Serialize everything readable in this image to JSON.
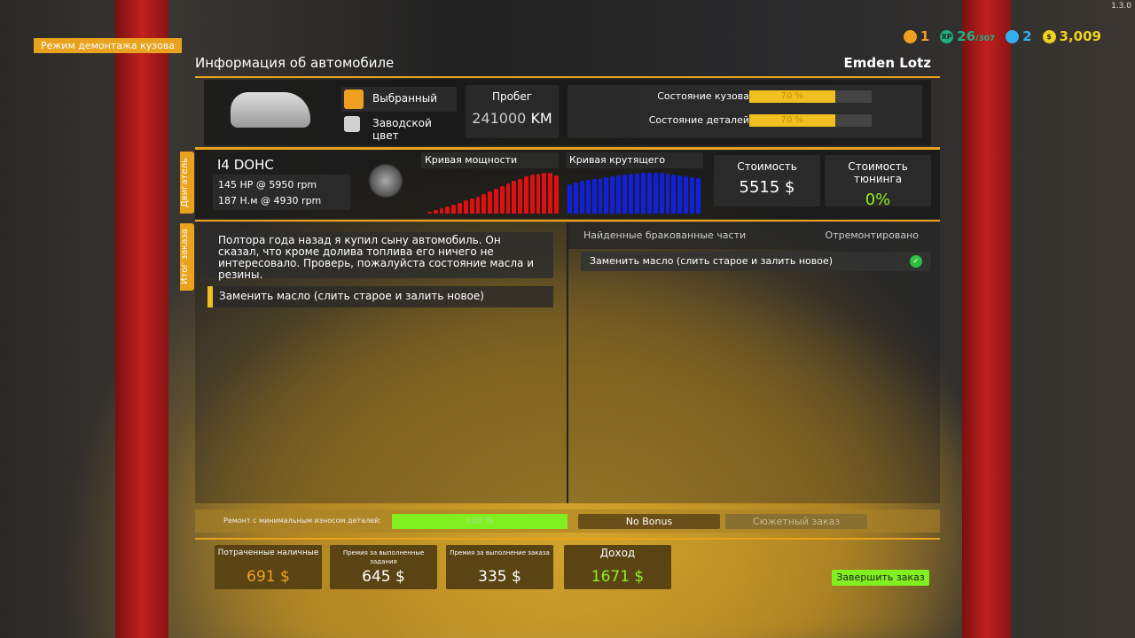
{
  "version": "1.3.0",
  "mode_label": "Режим демонтажа кузова",
  "hud": {
    "level": "1",
    "xp": "26",
    "xp_max": "/307",
    "calls": "2",
    "money": "3,009"
  },
  "header": {
    "title": "Информация об автомобиле",
    "owner": "Emden Lotz"
  },
  "car": {
    "selected_label": "Выбранный",
    "factory_label": "Заводской цвет",
    "selected_color": "#f0a020",
    "factory_color": "#d0d0d0",
    "mileage_label": "Пробег",
    "mileage": "241000",
    "mileage_unit": "KM",
    "body_label": "Состояние кузова",
    "body_value": "70 %",
    "body_pct": 70,
    "parts_label": "Состояние деталей",
    "parts_value": "70 %",
    "parts_pct": 70
  },
  "engine": {
    "tab": "Двигатель",
    "name": "I4 DOHC",
    "power": "145 HP @ 5950 rpm",
    "torque": "187 Н.м @ 4930 rpm",
    "power_curve_label": "Кривая мощности",
    "torque_curve_label": "Кривая крутящего",
    "power_curve": [
      5,
      9,
      13,
      17,
      21,
      26,
      31,
      36,
      41,
      47,
      53,
      59,
      65,
      72,
      78,
      84,
      89,
      93,
      96,
      98,
      97,
      92
    ],
    "torque_curve": [
      70,
      74,
      78,
      81,
      84,
      86,
      88,
      90,
      92,
      94,
      95,
      96,
      97,
      98,
      98,
      97,
      96,
      94,
      92,
      90,
      88,
      85
    ],
    "power_color": "#e01010",
    "torque_color": "#1020e0",
    "cost_label": "Стоимость",
    "cost": "5515 $",
    "tuning_label": "Стоимость тюнинга",
    "tuning": "0%"
  },
  "order": {
    "tab": "Итог заказа",
    "description": "Полтора года назад я купил сыну автомобиль. Он сказал, что кроме долива топлива его ничего не интересовало. Проверь, пожалуйста состояние масла и резины.",
    "tasks": [
      "Заменить масло (слить старое и залить новое)"
    ],
    "found_header": "Найденные бракованные части",
    "repaired_header": "Отремонтировано",
    "found": [
      {
        "name": "Заменить масло (слить старое и залить новое)",
        "repaired": true
      }
    ]
  },
  "bonus": {
    "min_wear_label": "Ремонт с минимальным износом деталей:",
    "min_wear_value": "100 %",
    "min_wear_pct": 100,
    "no_bonus": "No Bonus",
    "story": "Сюжетный заказ"
  },
  "summary": [
    {
      "label": "Потраченные наличные",
      "value": "691 $",
      "color": "#f0a020"
    },
    {
      "label": "Премия за выполненные задания",
      "value": "645 $",
      "color": "#ffffff"
    },
    {
      "label": "Премия за выполнение заказа",
      "value": "335 $",
      "color": "#ffffff"
    },
    {
      "label": "Доход",
      "value": "1671 $",
      "color": "#90f020"
    }
  ],
  "finish_button": "Завершить заказ"
}
